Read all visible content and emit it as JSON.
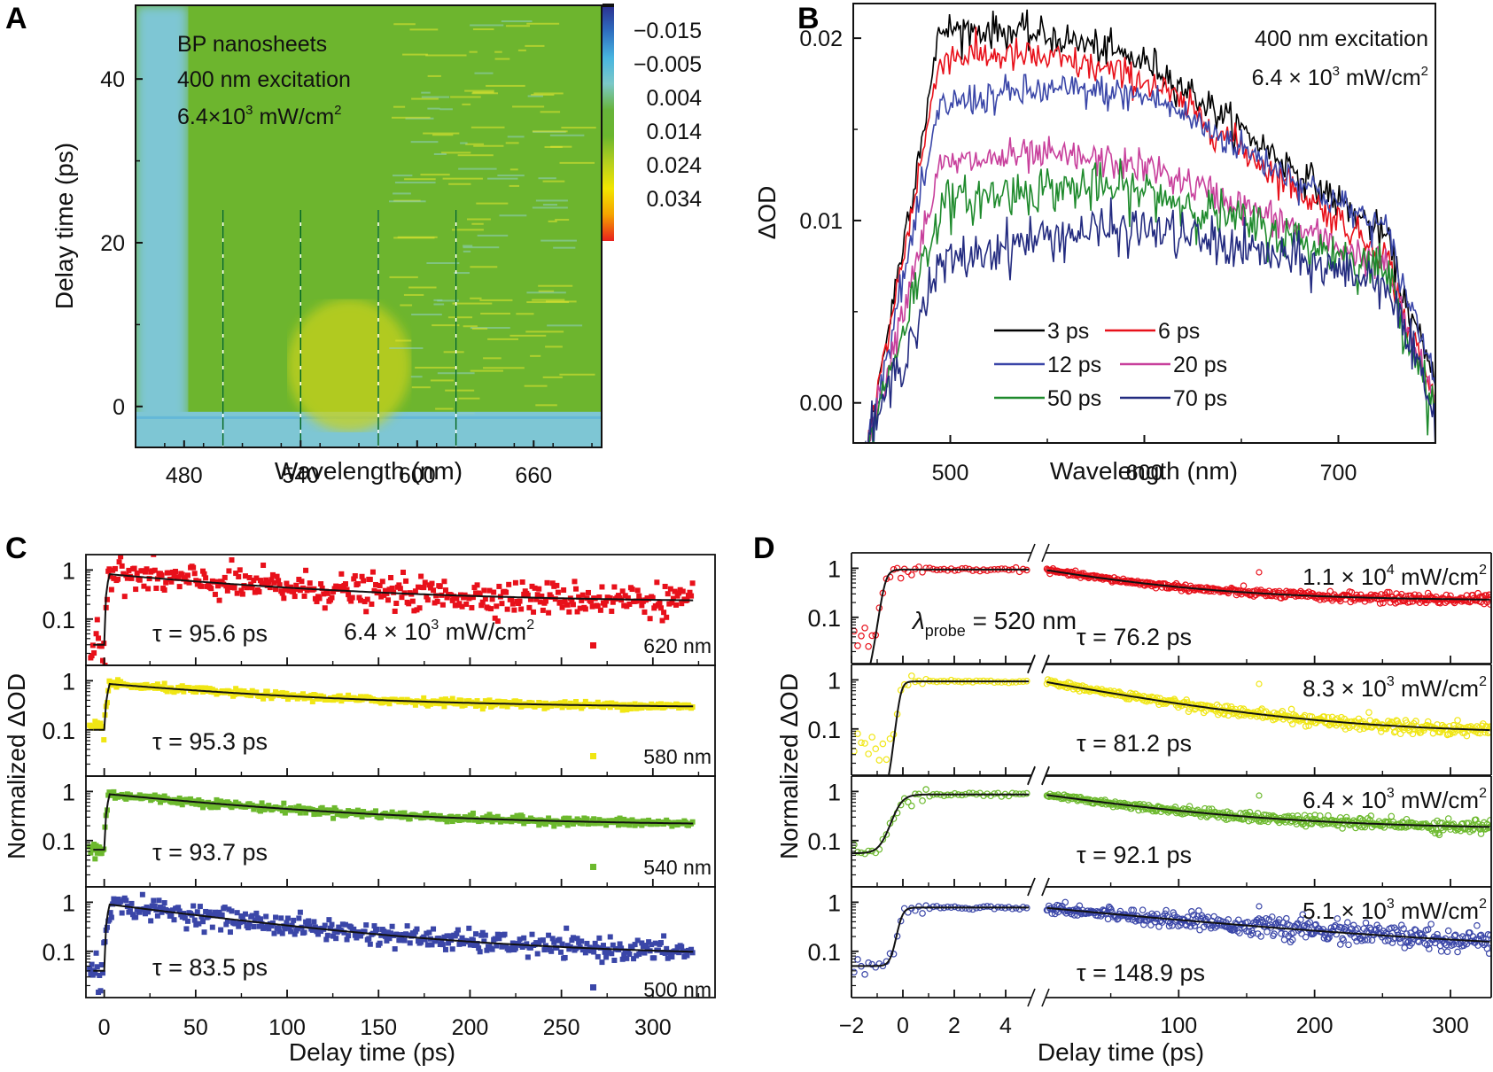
{
  "figure_letters": [
    "A",
    "B",
    "C",
    "D"
  ],
  "chart_data": [
    {
      "panel": "A",
      "type": "heatmap",
      "xlabel": "Wavelength (nm)",
      "ylabel": "Delay time (ps)",
      "xlim": [
        455,
        695
      ],
      "ylim": [
        -5,
        49
      ],
      "xticks": [
        480,
        540,
        600,
        660
      ],
      "yticks": [
        0,
        20,
        40
      ],
      "annotations": [
        "BP nanosheets",
        "400 nm excitation",
        "6.4×10³ mW/cm²"
      ],
      "annotation_parts": {
        "line1": "BP nanosheets",
        "line2": "400 nm excitation",
        "line3_base": "6.4×10",
        "line3_exp": "3",
        "line3_unit": " mW/cm",
        "line3_unit_exp": "2"
      },
      "colorbar": {
        "ticks": [
          "-0.015",
          "-0.005",
          "0.004",
          "0.014",
          "0.024",
          "0.034"
        ],
        "tick_labels": [
          "−0.015",
          "−0.005",
          "0.004",
          "0.014",
          "0.024",
          "0.034"
        ],
        "range": [
          -0.02,
          0.039
        ],
        "colors": [
          "#2b2f8f",
          "#2f6fc0",
          "#48b5e0",
          "#7cc8c8",
          "#67b43a",
          "#6bb62e",
          "#b4cf1e",
          "#f2e600",
          "#f5a300",
          "#e8211d"
        ]
      },
      "dashed_lines_nm": [
        500,
        540,
        580,
        620
      ],
      "dashed_line_top_ps": 24,
      "time_zero_ps": 0,
      "background_negative_color": "#7ec6d4",
      "signal_color": "#6db52e",
      "peak_color": "#c8d21c"
    },
    {
      "panel": "B",
      "type": "line",
      "xlabel": "Wavelength (nm)",
      "ylabel": "ΔOD",
      "xlim": [
        450,
        750
      ],
      "ylim": [
        -0.0022,
        0.0219
      ],
      "xticks": [
        500,
        600,
        700
      ],
      "yticks": [
        0.0,
        0.01,
        0.02
      ],
      "ytick_labels": [
        "0.00",
        "0.01",
        "0.02"
      ],
      "annotation_lines": [
        "400 nm excitation"
      ],
      "annotation_power": {
        "base": "6.4 × 10",
        "exp": "3",
        "unit": " mW/cm",
        "unit_exp": "2"
      },
      "legend_position": "bottom-center",
      "series": [
        {
          "name": "3 ps",
          "color": "#000000",
          "peak": 0.0205,
          "shoulder": 0.0185,
          "tail": 0.0085
        },
        {
          "name": "6 ps",
          "color": "#e8101a",
          "peak": 0.019,
          "shoulder": 0.0175,
          "tail": 0.0075
        },
        {
          "name": "12 ps",
          "color": "#3a46a8",
          "peak": 0.0163,
          "shoulder": 0.0167,
          "tail": 0.009
        },
        {
          "name": "20 ps",
          "color": "#c8409c",
          "peak": 0.013,
          "shoulder": 0.0128,
          "tail": 0.0072
        },
        {
          "name": "50 ps",
          "color": "#1e8a2c",
          "peak": 0.0108,
          "shoulder": 0.0115,
          "tail": 0.007
        },
        {
          "name": "70 ps",
          "color": "#232b80",
          "peak": 0.0075,
          "shoulder": 0.0095,
          "tail": 0.0065
        }
      ],
      "curve_shape": {
        "rise_start_nm": 458,
        "rise_end_nm": 495,
        "plateau_end_nm": 605,
        "decay_end_nm": 745,
        "noise": 0.0006
      }
    },
    {
      "panel": "C",
      "type": "scatter",
      "xlabel": "Delay time (ps)",
      "ylabel": "Normalized ΔOD",
      "xlim": [
        -10,
        334
      ],
      "xticks": [
        0,
        50,
        100,
        150,
        200,
        250,
        300
      ],
      "yscale": "log",
      "ylim": [
        0.0114,
        2.06
      ],
      "yticks": [
        0.1,
        1
      ],
      "ytick_labels": [
        "0.1",
        "1"
      ],
      "power_annotation": {
        "base": "6.4 × 10",
        "exp": "3",
        "unit": " mW/cm",
        "unit_exp": "2"
      },
      "series": [
        {
          "name": "620 nm",
          "color": "#e8101a",
          "tau_label": "τ = 95.6 ps",
          "tau_ps": 95.6,
          "plateau": 0.22,
          "amp": 0.6,
          "start": 0.85,
          "noise": 0.38,
          "pre_level": 0.03
        },
        {
          "name": "580 nm",
          "color": "#f0e614",
          "tau_label": "τ = 95.3 ps",
          "tau_ps": 95.3,
          "plateau": 0.28,
          "amp": 0.58,
          "start": 0.86,
          "noise": 0.08,
          "pre_level": 0.1
        },
        {
          "name": "540 nm",
          "color": "#6cb92d",
          "tau_label": "τ = 93.7 ps",
          "tau_ps": 93.7,
          "plateau": 0.2,
          "amp": 0.68,
          "start": 0.88,
          "noise": 0.09,
          "pre_level": 0.065
        },
        {
          "name": "500 nm",
          "color": "#3a46a8",
          "tau_label": "τ = 83.5 ps",
          "tau_ps": 83.5,
          "plateau": 0.08,
          "amp": 0.82,
          "start": 0.9,
          "noise": 0.25,
          "pre_level": 0.04
        }
      ]
    },
    {
      "panel": "D",
      "type": "scatter",
      "xlabel": "Delay time (ps)",
      "ylabel": "Normalized ΔOD",
      "broken_axis": true,
      "xlim_left": [
        -2,
        5
      ],
      "xlim_right": [
        2,
        330
      ],
      "xticks_left": [
        -2,
        0,
        2,
        4
      ],
      "xtick_labels_left": [
        "−2",
        "0",
        "2",
        "4"
      ],
      "xticks_right": [
        100,
        200,
        300
      ],
      "yscale": "log",
      "ylim": [
        0.0114,
        2.06
      ],
      "yticks": [
        0.1,
        1
      ],
      "ytick_labels": [
        "0.1",
        "1"
      ],
      "probe_label": {
        "symbol": "λ",
        "sub": "probe",
        "value": " = 520 nm"
      },
      "marker": "open-circle",
      "series": [
        {
          "name": "1.1 × 10⁴ mW/cm²",
          "power_base": "1.1 × 10",
          "power_exp": "4",
          "color": "#e8101a",
          "tau_label": "τ = 76.2 ps",
          "tau_ps": 76.2,
          "plateau": 0.22,
          "amp": 0.72,
          "rise_center": -0.7,
          "rise_width": 0.25,
          "pre_level": 0.005,
          "noise": 0.09
        },
        {
          "name": "8.3 × 10³ mW/cm²",
          "power_base": "8.3 × 10",
          "power_exp": "3",
          "color": "#f0e614",
          "tau_label": "τ = 81.2 ps",
          "tau_ps": 81.2,
          "plateau": 0.08,
          "amp": 0.85,
          "rise_center": -0.1,
          "rise_width": 0.2,
          "pre_level": 0.005,
          "noise": 0.12
        },
        {
          "name": "6.4 × 10³ mW/cm²",
          "power_base": "6.4 × 10",
          "power_exp": "3",
          "color": "#6cb92d",
          "tau_label": "τ = 92.1 ps",
          "tau_ps": 92.1,
          "plateau": 0.17,
          "amp": 0.7,
          "rise_center": -0.2,
          "rise_width": 0.45,
          "pre_level": 0.055,
          "noise": 0.11
        },
        {
          "name": "5.1 × 10³ mW/cm²",
          "power_base": "5.1 × 10",
          "power_exp": "3",
          "color": "#3a46a8",
          "tau_label": "τ = 148.9 ps",
          "tau_ps": 148.9,
          "plateau": 0.08,
          "amp": 0.7,
          "rise_center": -0.1,
          "rise_width": 0.25,
          "pre_level": 0.05,
          "noise": 0.22
        }
      ]
    }
  ]
}
